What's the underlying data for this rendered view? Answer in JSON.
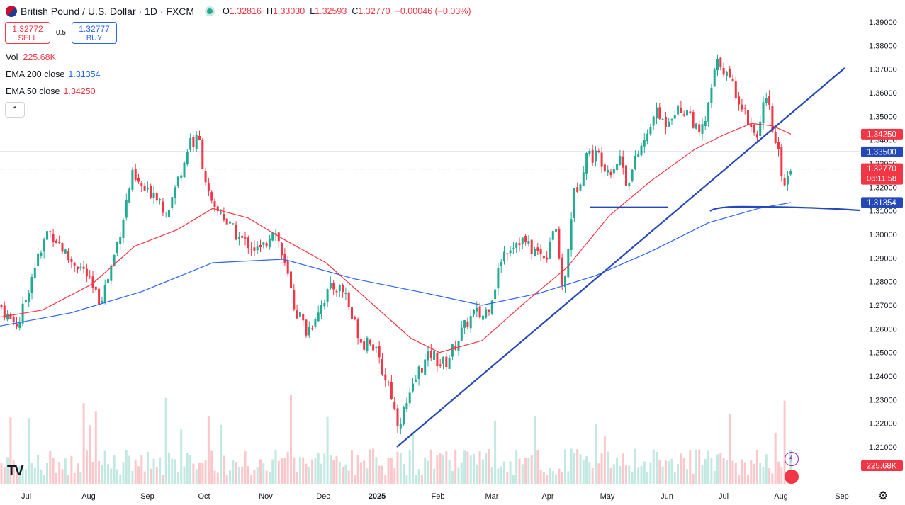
{
  "header": {
    "title": "British Pound / U.S. Dollar · 1D · FXCM",
    "ohlc": {
      "o_label": "O",
      "o": "1.32816",
      "h_label": "H",
      "h": "1.33030",
      "l_label": "L",
      "l": "1.32593",
      "c_label": "C",
      "c": "1.32770",
      "change": "−0.00046 (−0.03%)"
    }
  },
  "trade": {
    "sell_price": "1.32772",
    "sell_label": "SELL",
    "spread": "0.5",
    "buy_price": "1.32777",
    "buy_label": "BUY"
  },
  "indicators": {
    "vol_label": "Vol",
    "vol_value": "225.68K",
    "ema200_label": "EMA 200 close",
    "ema200_value": "1.31354",
    "ema50_label": "EMA 50 close",
    "ema50_value": "1.34250"
  },
  "colors": {
    "up": "#22ab94",
    "down": "#f23645",
    "ema200": "#2962ff",
    "ema50": "#f23645",
    "trend": "#2448b8"
  },
  "icons": {
    "collapse": "chevron-up-icon",
    "logo": "tradingview-logo-icon",
    "settings": "gear-icon"
  },
  "chart_data": {
    "type": "candlestick",
    "symbol": "GBPUSD",
    "timeframe": "1D",
    "ylim": [
      1.2,
      1.395
    ],
    "y_ticks": [
      "1.39000",
      "1.38000",
      "1.37000",
      "1.36000",
      "1.35000",
      "1.34000",
      "1.33000",
      "1.32000",
      "1.31000",
      "1.30000",
      "1.29000",
      "1.28000",
      "1.27000",
      "1.26000",
      "1.25000",
      "1.24000",
      "1.23000",
      "1.22000",
      "1.21000"
    ],
    "x_ticks": [
      "Jul",
      "Aug",
      "Sep",
      "Oct",
      "Nov",
      "Dec",
      "2025",
      "Feb",
      "Mar",
      "Apr",
      "May",
      "Jun",
      "Jul",
      "Aug",
      "Sep"
    ],
    "close_path": [
      [
        0,
        1.27
      ],
      [
        14,
        1.264
      ],
      [
        26,
        1.262
      ],
      [
        34,
        1.27
      ],
      [
        42,
        1.279
      ],
      [
        50,
        1.288
      ],
      [
        58,
        1.292
      ],
      [
        66,
        1.301
      ],
      [
        74,
        1.3
      ],
      [
        82,
        1.297
      ],
      [
        90,
        1.293
      ],
      [
        98,
        1.289
      ],
      [
        106,
        1.288
      ],
      [
        114,
        1.286
      ],
      [
        122,
        1.283
      ],
      [
        130,
        1.277
      ],
      [
        140,
        1.272
      ],
      [
        150,
        1.279
      ],
      [
        160,
        1.29
      ],
      [
        170,
        1.302
      ],
      [
        180,
        1.316
      ],
      [
        186,
        1.325
      ],
      [
        192,
        1.322
      ],
      [
        200,
        1.32
      ],
      [
        208,
        1.317
      ],
      [
        216,
        1.319
      ],
      [
        224,
        1.316
      ],
      [
        232,
        1.31
      ],
      [
        240,
        1.313
      ],
      [
        248,
        1.32
      ],
      [
        256,
        1.328
      ],
      [
        262,
        1.333
      ],
      [
        268,
        1.341
      ],
      [
        274,
        1.338
      ],
      [
        280,
        1.342
      ],
      [
        286,
        1.33
      ],
      [
        292,
        1.32
      ],
      [
        298,
        1.312
      ],
      [
        304,
        1.309
      ],
      [
        312,
        1.31
      ],
      [
        320,
        1.305
      ],
      [
        328,
        1.302
      ],
      [
        336,
        1.299
      ],
      [
        344,
        1.297
      ],
      [
        352,
        1.296
      ],
      [
        360,
        1.294
      ],
      [
        368,
        1.293
      ],
      [
        376,
        1.297
      ],
      [
        384,
        1.303
      ],
      [
        392,
        1.299
      ],
      [
        400,
        1.288
      ],
      [
        408,
        1.28
      ],
      [
        416,
        1.268
      ],
      [
        424,
        1.265
      ],
      [
        432,
        1.259
      ],
      [
        440,
        1.262
      ],
      [
        448,
        1.268
      ],
      [
        456,
        1.272
      ],
      [
        464,
        1.276
      ],
      [
        472,
        1.278
      ],
      [
        480,
        1.277
      ],
      [
        488,
        1.275
      ],
      [
        496,
        1.265
      ],
      [
        504,
        1.26
      ],
      [
        512,
        1.253
      ],
      [
        520,
        1.257
      ],
      [
        528,
        1.252
      ],
      [
        536,
        1.245
      ],
      [
        544,
        1.239
      ],
      [
        550,
        1.236
      ],
      [
        556,
        1.226
      ],
      [
        562,
        1.22
      ],
      [
        568,
        1.224
      ],
      [
        574,
        1.228
      ],
      [
        580,
        1.232
      ],
      [
        590,
        1.242
      ],
      [
        600,
        1.246
      ],
      [
        610,
        1.25
      ],
      [
        620,
        1.245
      ],
      [
        630,
        1.246
      ],
      [
        640,
        1.252
      ],
      [
        650,
        1.258
      ],
      [
        660,
        1.263
      ],
      [
        670,
        1.267
      ],
      [
        680,
        1.265
      ],
      [
        690,
        1.27
      ],
      [
        700,
        1.28
      ],
      [
        708,
        1.291
      ],
      [
        716,
        1.294
      ],
      [
        724,
        1.296
      ],
      [
        732,
        1.298
      ],
      [
        740,
        1.297
      ],
      [
        748,
        1.294
      ],
      [
        756,
        1.293
      ],
      [
        764,
        1.291
      ],
      [
        772,
        1.292
      ],
      [
        778,
        1.301
      ],
      [
        784,
        1.305
      ],
      [
        790,
        1.283
      ],
      [
        796,
        1.277
      ],
      [
        802,
        1.294
      ],
      [
        808,
        1.315
      ],
      [
        814,
        1.32
      ],
      [
        820,
        1.325
      ],
      [
        828,
        1.335
      ],
      [
        836,
        1.333
      ],
      [
        844,
        1.334
      ],
      [
        852,
        1.33
      ],
      [
        860,
        1.327
      ],
      [
        868,
        1.33
      ],
      [
        876,
        1.333
      ],
      [
        884,
        1.322
      ],
      [
        892,
        1.327
      ],
      [
        900,
        1.334
      ],
      [
        908,
        1.339
      ],
      [
        916,
        1.342
      ],
      [
        922,
        1.352
      ],
      [
        930,
        1.35
      ],
      [
        938,
        1.347
      ],
      [
        946,
        1.351
      ],
      [
        954,
        1.353
      ],
      [
        962,
        1.352
      ],
      [
        970,
        1.353
      ],
      [
        978,
        1.348
      ],
      [
        986,
        1.341
      ],
      [
        994,
        1.347
      ],
      [
        1000,
        1.354
      ],
      [
        1006,
        1.366
      ],
      [
        1012,
        1.372
      ],
      [
        1018,
        1.373
      ],
      [
        1024,
        1.368
      ],
      [
        1030,
        1.365
      ],
      [
        1036,
        1.362
      ],
      [
        1042,
        1.358
      ],
      [
        1048,
        1.354
      ],
      [
        1054,
        1.35
      ],
      [
        1060,
        1.345
      ],
      [
        1066,
        1.343
      ],
      [
        1072,
        1.345
      ],
      [
        1078,
        1.355
      ],
      [
        1084,
        1.356
      ],
      [
        1088,
        1.347
      ],
      [
        1094,
        1.338
      ],
      [
        1100,
        1.332
      ],
      [
        1106,
        1.321
      ],
      [
        1112,
        1.326
      ],
      [
        1116,
        1.328
      ]
    ],
    "series": [
      {
        "name": "EMA 200 close",
        "color": "#2962ff",
        "points": [
          [
            0,
            1.2612
          ],
          [
            100,
            1.2668
          ],
          [
            200,
            1.2758
          ],
          [
            300,
            1.288
          ],
          [
            400,
            1.2895
          ],
          [
            500,
            1.2812
          ],
          [
            600,
            1.2752
          ],
          [
            680,
            1.27
          ],
          [
            760,
            1.275
          ],
          [
            840,
            1.2825
          ],
          [
            920,
            1.293
          ],
          [
            1000,
            1.305
          ],
          [
            1070,
            1.311
          ],
          [
            1116,
            1.3135
          ]
        ]
      },
      {
        "name": "EMA 50 close",
        "color": "#f23645",
        "points": [
          [
            0,
            1.265
          ],
          [
            60,
            1.268
          ],
          [
            130,
            1.279
          ],
          [
            190,
            1.295
          ],
          [
            250,
            1.302
          ],
          [
            300,
            1.311
          ],
          [
            350,
            1.307
          ],
          [
            400,
            1.298
          ],
          [
            460,
            1.288
          ],
          [
            520,
            1.272
          ],
          [
            580,
            1.256
          ],
          [
            620,
            1.25
          ],
          [
            680,
            1.255
          ],
          [
            740,
            1.271
          ],
          [
            800,
            1.286
          ],
          [
            860,
            1.308
          ],
          [
            920,
            1.323
          ],
          [
            980,
            1.336
          ],
          [
            1020,
            1.342
          ],
          [
            1060,
            1.347
          ],
          [
            1090,
            1.346
          ],
          [
            1116,
            1.3425
          ]
        ]
      }
    ],
    "annotations": [
      {
        "type": "horizontal_line",
        "price": 1.335,
        "label": "1.33500"
      },
      {
        "type": "trendline",
        "from": [
          560,
          1.21
        ],
        "to": [
          1192,
          1.3705
        ]
      },
      {
        "type": "support_segment",
        "from": [
          832,
          1.3115
        ],
        "to": [
          942,
          1.3115
        ]
      },
      {
        "type": "support_curve",
        "note": "arc near 1.3105"
      }
    ],
    "price_labels": [
      {
        "name": "EMA 50",
        "price": 1.3425,
        "text": "1.34250",
        "color": "#f23645"
      },
      {
        "name": "Level",
        "price": 1.335,
        "text": "1.33500",
        "color": "#2448b8"
      },
      {
        "name": "Last",
        "price": 1.3277,
        "text": "1.32770",
        "sub": "06:11:58",
        "color": "#f23645"
      },
      {
        "name": "EMA 200",
        "price": 1.31354,
        "text": "1.31354",
        "color": "#2448b8"
      },
      {
        "name": "Volume",
        "text": "225.68K",
        "color": "#f23645"
      }
    ]
  }
}
